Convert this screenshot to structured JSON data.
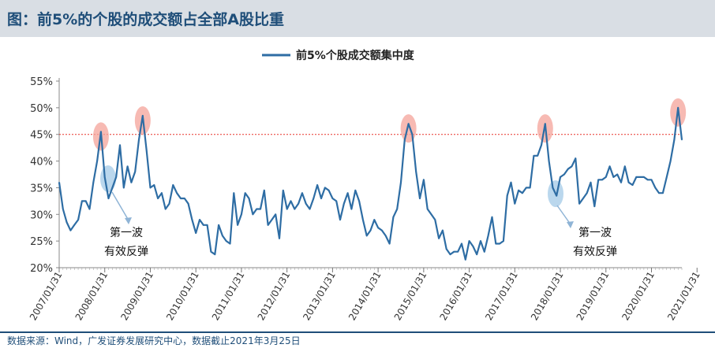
{
  "header": {
    "title": "图：前5%的个股的成交额占全部A股比重"
  },
  "footer": {
    "source": "数据来源：Wind，广发证券发展研究中心，数据截止2021年3月25日"
  },
  "colors": {
    "line": "#2e6da4",
    "threshold": "#e8332a",
    "peak_marker": "#f4a39a",
    "rebound_marker": "#a9cde8",
    "title_bg": "#d9dee4",
    "title_text": "#1f4e79"
  },
  "chart_data": {
    "type": "line",
    "title": "",
    "legend": {
      "labels": [
        "前5%个股成交额集中度"
      ],
      "position": "top-center"
    },
    "ylim": [
      20,
      55
    ],
    "yticks": [
      "20%",
      "25%",
      "30%",
      "35%",
      "40%",
      "45%",
      "50%",
      "55%"
    ],
    "xticks": [
      "2007/01/31",
      "2008/01/31",
      "2009/01/31",
      "2010/01/31",
      "2011/01/31",
      "2012/01/31",
      "2013/01/31",
      "2014/01/31",
      "2015/01/31",
      "2016/01/31",
      "2017/01/31",
      "2018/01/31",
      "2019/01/31",
      "2020/01/31",
      "2021/01/31"
    ],
    "threshold": 45,
    "annotations": [
      {
        "text_line1": "第一波",
        "text_line2": "有效反弹"
      },
      {
        "text_line1": "第一波",
        "text_line2": "有效反弹"
      }
    ],
    "series": [
      {
        "name": "前5%个股成交额集中度",
        "start": "2007-01",
        "values": [
          36,
          31,
          28.5,
          27,
          28,
          29,
          32.5,
          32.5,
          31,
          36,
          40,
          45.5,
          37,
          33,
          35,
          37,
          43,
          35,
          39,
          36,
          38,
          44,
          48.5,
          42,
          35,
          35.5,
          33,
          34,
          31,
          32,
          35.5,
          34,
          33,
          33,
          32,
          29,
          26.5,
          29,
          28,
          28,
          23,
          22.5,
          28,
          26,
          25,
          24.5,
          34,
          28,
          30,
          34,
          33,
          30,
          31,
          31,
          34.5,
          28,
          29,
          30,
          25.5,
          34.5,
          31,
          32.5,
          31,
          32,
          34,
          32,
          31,
          33,
          35.5,
          33,
          35,
          34.5,
          33,
          32.5,
          29,
          32,
          34,
          31,
          34.5,
          32.5,
          29,
          26,
          27,
          29,
          27.5,
          27,
          26,
          24.5,
          29.5,
          31,
          36,
          44,
          47,
          45,
          38,
          33,
          36.5,
          31,
          30,
          29,
          25.5,
          27,
          23.5,
          22.5,
          23,
          23,
          24.5,
          21.5,
          25,
          24,
          22.5,
          25,
          23,
          26,
          29.5,
          24.5,
          24.5,
          25,
          33.5,
          36,
          32,
          34.5,
          34,
          35,
          35,
          41,
          41,
          43,
          47,
          40,
          35,
          33.5,
          37,
          37.5,
          38.5,
          39,
          40.5,
          32,
          33,
          34,
          36,
          31.5,
          36.5,
          36.5,
          37,
          39,
          37,
          37.5,
          36,
          39,
          36,
          35.5,
          37,
          37,
          37,
          36.5,
          36.5,
          35,
          34,
          34,
          37,
          40,
          44,
          50,
          44
        ]
      }
    ]
  }
}
